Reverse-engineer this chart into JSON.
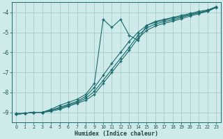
{
  "xlabel": "Humidex (Indice chaleur)",
  "bg_color": "#ceeaea",
  "grid_color": "#aacccc",
  "line_color": "#1a6b6b",
  "xlim": [
    -0.5,
    23.5
  ],
  "ylim": [
    -9.5,
    -3.5
  ],
  "yticks": [
    -9,
    -8,
    -7,
    -6,
    -5,
    -4
  ],
  "xticks": [
    0,
    1,
    2,
    3,
    4,
    5,
    6,
    7,
    8,
    9,
    10,
    11,
    12,
    13,
    14,
    15,
    16,
    17,
    18,
    19,
    20,
    21,
    22,
    23
  ],
  "line1_x": [
    0,
    1,
    2,
    3,
    4,
    5,
    6,
    7,
    8,
    9,
    10,
    11,
    12,
    13,
    14,
    15,
    16,
    17,
    18,
    19,
    20,
    21,
    22,
    23
  ],
  "line1_y": [
    -9.05,
    -9.05,
    -9.0,
    -9.0,
    -8.85,
    -8.65,
    -8.5,
    -8.35,
    -8.1,
    -7.55,
    -4.35,
    -4.75,
    -4.35,
    -5.15,
    -5.4,
    -4.65,
    -4.5,
    -4.4,
    -4.3,
    -4.2,
    -4.1,
    -4.0,
    -3.95,
    -3.75
  ],
  "line2_x": [
    0,
    1,
    2,
    3,
    4,
    5,
    6,
    7,
    8,
    9,
    10,
    11,
    12,
    13,
    14,
    15,
    16,
    17,
    18,
    19,
    20,
    21,
    22,
    23
  ],
  "line2_y": [
    -9.1,
    -9.05,
    -9.0,
    -9.0,
    -8.9,
    -8.75,
    -8.6,
    -8.45,
    -8.2,
    -7.75,
    -7.15,
    -6.55,
    -6.0,
    -5.45,
    -5.0,
    -4.65,
    -4.45,
    -4.35,
    -4.25,
    -4.15,
    -4.05,
    -3.95,
    -3.88,
    -3.72
  ],
  "line3_x": [
    0,
    1,
    2,
    3,
    4,
    5,
    6,
    7,
    8,
    9,
    10,
    11,
    12,
    13,
    14,
    15,
    16,
    17,
    18,
    19,
    20,
    21,
    22,
    23
  ],
  "line3_y": [
    -9.1,
    -9.05,
    -9.0,
    -9.0,
    -8.9,
    -8.8,
    -8.65,
    -8.5,
    -8.3,
    -7.95,
    -7.4,
    -6.85,
    -6.3,
    -5.75,
    -5.15,
    -4.78,
    -4.58,
    -4.47,
    -4.37,
    -4.25,
    -4.12,
    -4.02,
    -3.9,
    -3.72
  ],
  "line4_x": [
    0,
    1,
    2,
    3,
    4,
    5,
    6,
    7,
    8,
    9,
    10,
    11,
    12,
    13,
    14,
    15,
    16,
    17,
    18,
    19,
    20,
    21,
    22,
    23
  ],
  "line4_y": [
    -9.1,
    -9.05,
    -9.0,
    -9.0,
    -8.95,
    -8.85,
    -8.7,
    -8.55,
    -8.4,
    -8.1,
    -7.55,
    -7.0,
    -6.45,
    -5.9,
    -5.3,
    -4.9,
    -4.68,
    -4.55,
    -4.44,
    -4.32,
    -4.18,
    -4.07,
    -3.93,
    -3.74
  ]
}
